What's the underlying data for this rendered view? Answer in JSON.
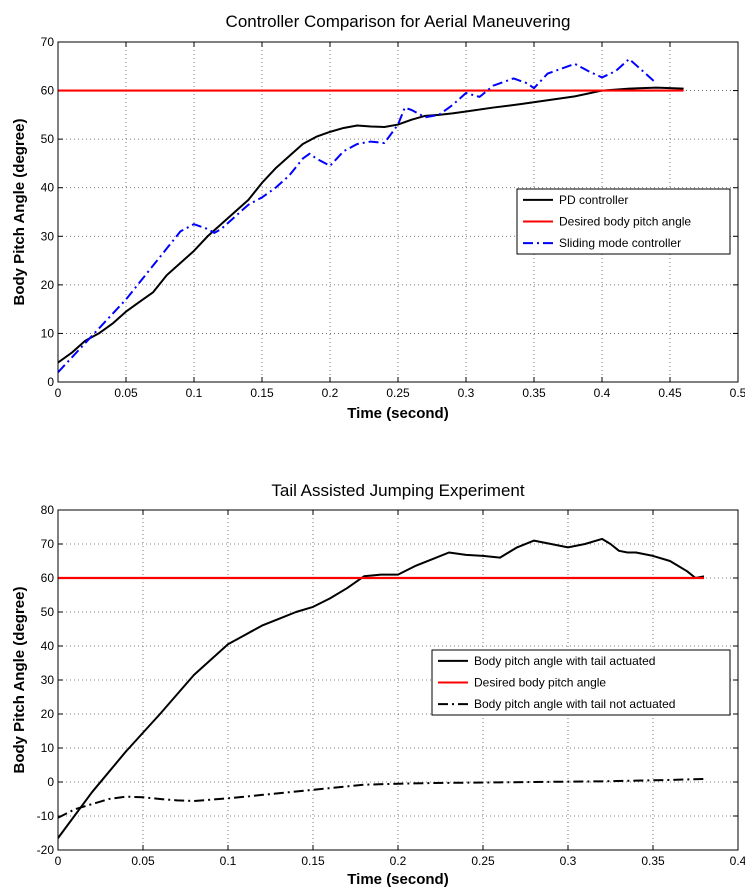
{
  "chart_data": [
    {
      "type": "line",
      "title": "Controller Comparison for Aerial Maneuvering",
      "xlabel": "Time (second)",
      "ylabel": "Body Pitch Angle (degree)",
      "xlim": [
        0,
        0.5
      ],
      "ylim": [
        0,
        70
      ],
      "xticks": [
        "0",
        "0.05",
        "0.1",
        "0.15",
        "0.2",
        "0.25",
        "0.3",
        "0.35",
        "0.4",
        "0.45",
        "0.5"
      ],
      "yticks": [
        "0",
        "10",
        "20",
        "30",
        "40",
        "50",
        "60",
        "70"
      ],
      "grid": true,
      "legend_position": "center-right",
      "series": [
        {
          "name": "PD controller",
          "color": "#000000",
          "style": "solid",
          "x": [
            0,
            0.01,
            0.02,
            0.03,
            0.04,
            0.05,
            0.06,
            0.07,
            0.08,
            0.09,
            0.1,
            0.11,
            0.12,
            0.13,
            0.14,
            0.15,
            0.16,
            0.17,
            0.18,
            0.19,
            0.2,
            0.21,
            0.22,
            0.23,
            0.24,
            0.25,
            0.26,
            0.27,
            0.28,
            0.29,
            0.3,
            0.32,
            0.34,
            0.36,
            0.38,
            0.4,
            0.42,
            0.44,
            0.46
          ],
          "y": [
            4,
            6,
            8.5,
            10,
            12,
            14.5,
            16.5,
            18.5,
            22,
            24.5,
            27,
            30,
            32.5,
            35,
            37.5,
            41,
            44,
            46.5,
            49,
            50.5,
            51.5,
            52.3,
            52.8,
            52.6,
            52.5,
            53,
            54,
            54.8,
            55,
            55.3,
            55.7,
            56.5,
            57.2,
            58,
            58.8,
            60,
            60.4,
            60.6,
            60.4
          ]
        },
        {
          "name": "Desired body pitch angle",
          "color": "#ff0000",
          "style": "solid",
          "x": [
            0,
            0.46
          ],
          "y": [
            60,
            60
          ]
        },
        {
          "name": "Sliding mode controller",
          "color": "#0000ff",
          "style": "dashdot",
          "x": [
            0,
            0.01,
            0.02,
            0.03,
            0.04,
            0.05,
            0.06,
            0.07,
            0.08,
            0.09,
            0.1,
            0.11,
            0.115,
            0.12,
            0.13,
            0.14,
            0.15,
            0.16,
            0.17,
            0.18,
            0.185,
            0.19,
            0.2,
            0.21,
            0.22,
            0.23,
            0.24,
            0.25,
            0.255,
            0.26,
            0.27,
            0.28,
            0.29,
            0.3,
            0.31,
            0.32,
            0.335,
            0.345,
            0.35,
            0.36,
            0.38,
            0.39,
            0.4,
            0.41,
            0.42,
            0.43,
            0.44
          ],
          "y": [
            2,
            5,
            8,
            11,
            14,
            17,
            20.5,
            24,
            27.5,
            31,
            32.5,
            31.5,
            30.7,
            31.5,
            34,
            36.5,
            38,
            40,
            42.5,
            46,
            47,
            46,
            44.5,
            47.5,
            49,
            49.5,
            49.2,
            53,
            56.5,
            56,
            54.5,
            55,
            57,
            59.5,
            58.7,
            61,
            62.5,
            61.5,
            60.5,
            63.5,
            65.5,
            64,
            62.7,
            64,
            66.5,
            64,
            61.5
          ]
        }
      ]
    },
    {
      "type": "line",
      "title": "Tail Assisted Jumping Experiment",
      "xlabel": "Time (second)",
      "ylabel": "Body Pitch Angle (degree)",
      "xlim": [
        0,
        0.4
      ],
      "ylim": [
        -20,
        80
      ],
      "xticks": [
        "0",
        "0.05",
        "0.1",
        "0.15",
        "0.2",
        "0.25",
        "0.3",
        "0.35",
        "0.4"
      ],
      "yticks": [
        "-20",
        "-10",
        "0",
        "10",
        "20",
        "30",
        "40",
        "50",
        "60",
        "70",
        "80"
      ],
      "grid": true,
      "legend_position": "center-right",
      "series": [
        {
          "name": "Body pitch angle with tail actuated",
          "color": "#000000",
          "style": "solid",
          "x": [
            0,
            0.02,
            0.04,
            0.06,
            0.08,
            0.1,
            0.12,
            0.13,
            0.14,
            0.15,
            0.16,
            0.17,
            0.18,
            0.19,
            0.2,
            0.21,
            0.22,
            0.23,
            0.24,
            0.25,
            0.26,
            0.27,
            0.28,
            0.29,
            0.3,
            0.31,
            0.32,
            0.325,
            0.33,
            0.335,
            0.34,
            0.35,
            0.36,
            0.37,
            0.375,
            0.38
          ],
          "y": [
            -16.5,
            -3,
            9,
            20,
            31.5,
            40.5,
            46,
            48,
            50,
            51.5,
            54,
            57,
            60.5,
            61,
            61,
            63.5,
            65.5,
            67.5,
            66.8,
            66.5,
            66,
            69,
            71,
            70,
            69,
            70,
            71.5,
            70,
            68,
            67.5,
            67.5,
            66.5,
            65,
            62,
            60,
            60.5
          ]
        },
        {
          "name": "Desired body pitch angle",
          "color": "#ff0000",
          "style": "solid",
          "x": [
            0,
            0.38
          ],
          "y": [
            60,
            60
          ]
        },
        {
          "name": "Body pitch angle with tail not actuated",
          "color": "#000000",
          "style": "dashdot",
          "x": [
            0,
            0.01,
            0.02,
            0.03,
            0.04,
            0.05,
            0.06,
            0.07,
            0.08,
            0.09,
            0.1,
            0.12,
            0.14,
            0.16,
            0.18,
            0.2,
            0.22,
            0.24,
            0.26,
            0.28,
            0.3,
            0.32,
            0.34,
            0.36,
            0.38
          ],
          "y": [
            -10.5,
            -8,
            -6.5,
            -5,
            -4.3,
            -4.5,
            -5,
            -5.4,
            -5.6,
            -5.2,
            -4.8,
            -3.8,
            -2.8,
            -1.8,
            -0.8,
            -0.5,
            -0.3,
            -0.2,
            -0.1,
            0,
            0.1,
            0.2,
            0.4,
            0.6,
            0.9
          ]
        }
      ]
    }
  ]
}
